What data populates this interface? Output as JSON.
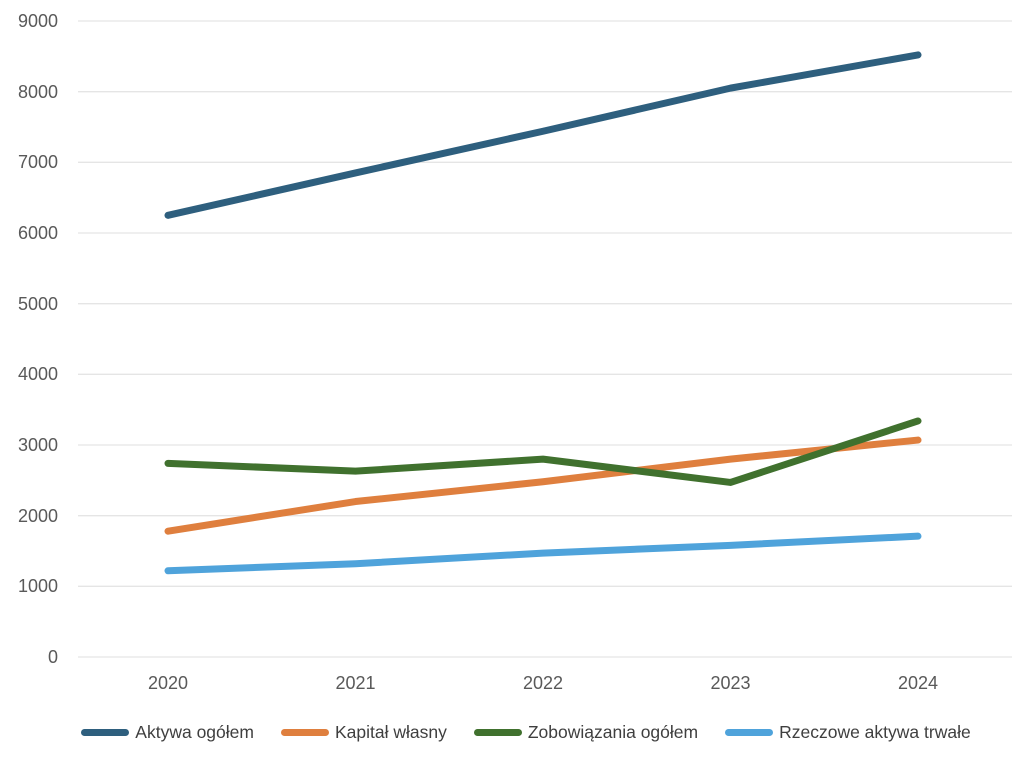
{
  "chart_data": {
    "type": "line",
    "title": "",
    "xlabel": "",
    "ylabel": "",
    "categories": [
      "2020",
      "2021",
      "2022",
      "2023",
      "2024"
    ],
    "series": [
      {
        "name": "Aktywa ogółem",
        "color": "#2E5F7E",
        "values": [
          6250,
          6850,
          7440,
          8050,
          8520
        ]
      },
      {
        "name": "Kapitał własny",
        "color": "#DF7F3E",
        "values": [
          1780,
          2200,
          2480,
          2800,
          3070
        ]
      },
      {
        "name": "Zobowiązania ogółem",
        "color": "#40712E",
        "values": [
          2740,
          2630,
          2800,
          2470,
          3340
        ]
      },
      {
        "name": "Rzeczowe aktywa trwałe",
        "color": "#4FA3DB",
        "values": [
          1220,
          1320,
          1470,
          1580,
          1710
        ]
      }
    ],
    "ylim": [
      0,
      9000
    ],
    "y_ticks": [
      0,
      1000,
      2000,
      3000,
      4000,
      5000,
      6000,
      7000,
      8000,
      9000
    ],
    "grid": true,
    "legend_position": "bottom"
  },
  "colors": {
    "background": "#FFFFFF",
    "grid": "#E5E5E5",
    "axis_text": "#595959",
    "legend_text": "#3F3F3F"
  }
}
